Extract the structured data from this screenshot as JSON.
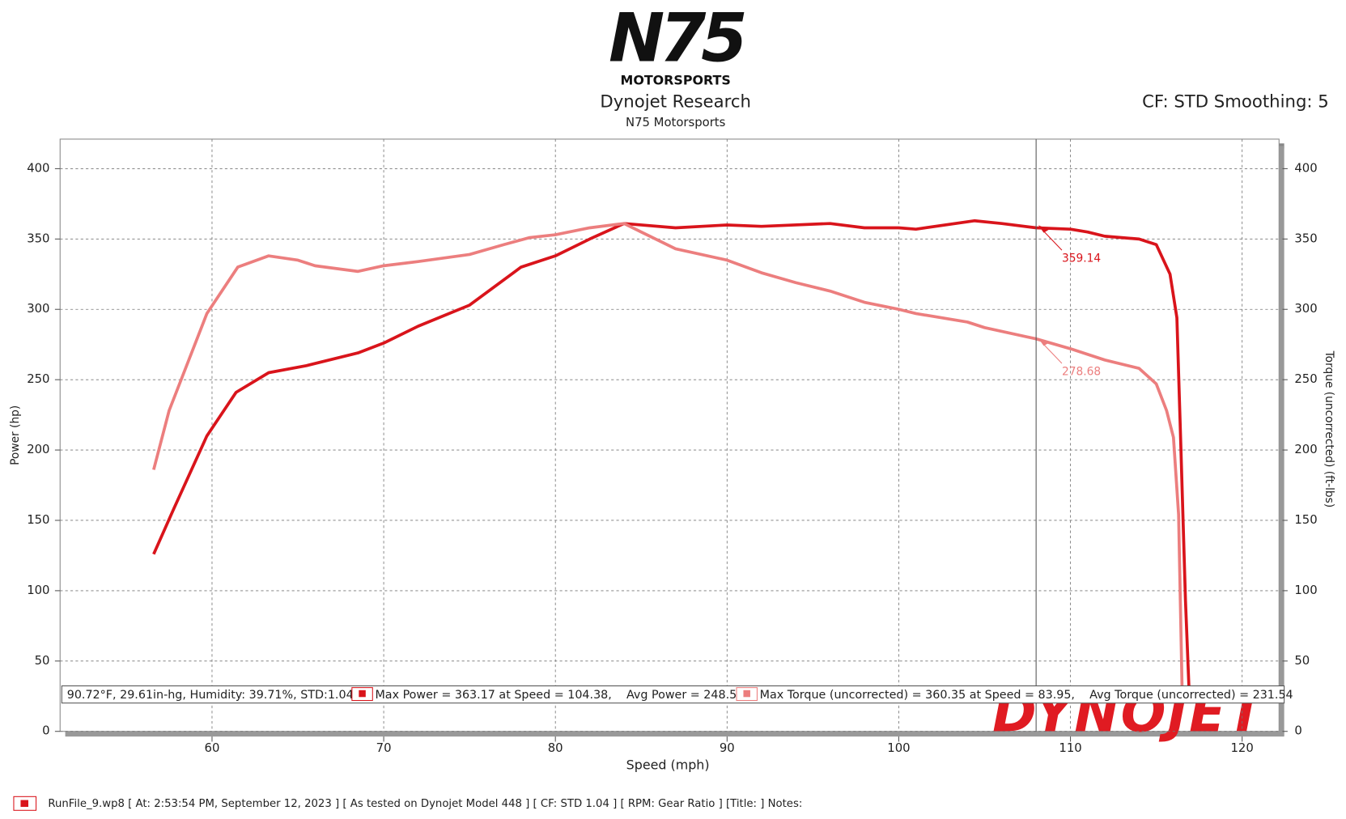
{
  "chart_data": {
    "type": "line",
    "logo": "N75",
    "logo_sub": "MOTORSPORTS",
    "title": "Dynojet Research",
    "subtitle": "N75 Motorsports",
    "corner_note": "CF: STD Smoothing: 5",
    "x_label": "Speed (mph)",
    "y_label": "Power (hp)",
    "y2_label": "Torque (uncorrected) (ft-lbs)",
    "watermark": "DYNOJET",
    "xlim": [
      51.15,
      122.15
    ],
    "xticks": [
      60,
      70,
      80,
      90,
      100,
      110,
      120
    ],
    "ylim": [
      0,
      421
    ],
    "yticks": [
      0,
      50,
      100,
      150,
      200,
      250,
      300,
      350,
      400
    ],
    "y2lim": [
      0,
      421
    ],
    "y2ticks": [
      0,
      50,
      100,
      150,
      200,
      250,
      300,
      350,
      400
    ],
    "grid": true,
    "series": [
      {
        "name": "Max Power = 363.17 at Speed = 104.38,    Avg Power = 248.50",
        "color": "#d9141b",
        "x": [
          56.6,
          57.8,
          59.7,
          61.4,
          63.3,
          65.5,
          68.5,
          70,
          72,
          75,
          78,
          80,
          82,
          84,
          87,
          90,
          92,
          96,
          98,
          100,
          101,
          104.4,
          106,
          108,
          110,
          111,
          112,
          114,
          115,
          115.8,
          116.2,
          116.4,
          116.7,
          116.9
        ],
        "values": [
          126,
          159,
          210,
          241,
          255,
          260,
          269,
          276,
          288,
          303,
          330,
          338,
          350,
          361,
          358,
          360,
          359,
          361,
          358,
          358,
          357,
          363,
          361,
          358,
          357,
          355,
          352,
          350,
          346,
          325,
          294,
          215,
          93,
          32
        ]
      },
      {
        "name": "Max Torque (uncorrected) = 360.35 at Speed = 83.95,    Avg Torque (uncorrected) = 231.54",
        "color": "#ec7e7e",
        "axis": "y2",
        "x": [
          56.6,
          57.5,
          59.7,
          61.5,
          63.3,
          65,
          66,
          68.5,
          70,
          72,
          75,
          77,
          78.5,
          80,
          82,
          84,
          85,
          87,
          90,
          92,
          94,
          96,
          98,
          100,
          101,
          104,
          105,
          108,
          110,
          112,
          114,
          115,
          115.6,
          116,
          116.3,
          116.4,
          116.5
        ],
        "values": [
          186,
          228,
          297,
          330,
          338,
          335,
          331,
          327,
          331,
          334,
          339,
          346,
          351,
          353,
          358,
          361,
          355,
          343,
          335,
          326,
          319,
          313,
          305,
          300,
          297,
          291,
          287,
          279,
          272,
          264,
          258,
          247,
          228,
          209,
          154,
          93,
          32
        ]
      }
    ],
    "cursor_x": 108,
    "cursor_values": [
      359.14,
      278.68
    ],
    "conditions": "90.72°F, 29.61in-hg, Humidity: 39.71%, STD:1.04",
    "footer": "RunFile_9.wp8 [ At: 2:53:54 PM, September 12, 2023 ] [ As tested on Dynojet Model 448 ] [ CF: STD 1.04 ] [ RPM: Gear Ratio ] [Title: ]  Notes:"
  }
}
